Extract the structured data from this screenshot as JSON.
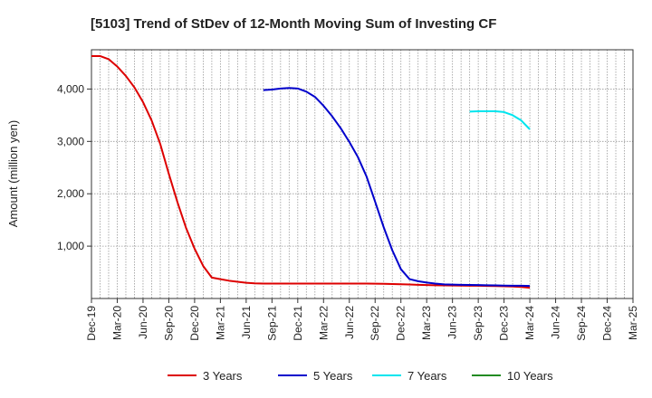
{
  "chart_data": {
    "type": "line",
    "title": "[5103]  Trend of StDev of 12-Month Moving Sum of Investing CF",
    "xlabel": "",
    "ylabel": "Amount (million yen)",
    "ylim": [
      0,
      4750
    ],
    "yticks": [
      1000,
      2000,
      3000,
      4000
    ],
    "ytick_labels": [
      "1,000",
      "2,000",
      "3,000",
      "4,000"
    ],
    "x_ticks": [
      "Dec-19",
      "Mar-20",
      "Jun-20",
      "Sep-20",
      "Dec-20",
      "Mar-21",
      "Jun-21",
      "Sep-21",
      "Dec-21",
      "Mar-22",
      "Jun-22",
      "Sep-22",
      "Dec-22",
      "Mar-23",
      "Jun-23",
      "Sep-23",
      "Dec-23",
      "Mar-24",
      "Jun-24",
      "Sep-24",
      "Dec-24",
      "Mar-25"
    ],
    "grid": true,
    "legend_position": "bottom",
    "series": [
      {
        "name": "3 Years",
        "color": "#dd0000",
        "x": [
          "2019-12",
          "2020-01",
          "2020-02",
          "2020-03",
          "2020-04",
          "2020-05",
          "2020-06",
          "2020-07",
          "2020-08",
          "2020-09",
          "2020-10",
          "2020-11",
          "2020-12",
          "2021-01",
          "2021-02",
          "2021-03",
          "2021-04",
          "2021-05",
          "2021-06",
          "2021-07",
          "2021-08",
          "2021-09",
          "2021-10",
          "2021-11",
          "2021-12",
          "2022-01",
          "2022-02",
          "2022-03",
          "2022-04",
          "2022-05",
          "2022-06",
          "2022-07",
          "2022-08",
          "2022-09",
          "2022-10",
          "2022-11",
          "2022-12",
          "2023-01",
          "2023-02",
          "2023-03",
          "2023-04",
          "2023-05",
          "2023-06",
          "2023-07",
          "2023-08",
          "2023-09",
          "2023-10",
          "2023-11",
          "2023-12",
          "2024-01",
          "2024-02",
          "2024-03"
        ],
        "values": [
          4630,
          4630,
          4570,
          4430,
          4250,
          4030,
          3750,
          3400,
          2950,
          2380,
          1840,
          1350,
          950,
          620,
          400,
          370,
          340,
          320,
          300,
          290,
          285,
          285,
          285,
          285,
          285,
          285,
          285,
          285,
          285,
          285,
          285,
          285,
          285,
          283,
          280,
          277,
          272,
          267,
          262,
          257,
          252,
          250,
          248,
          247,
          245,
          243,
          240,
          237,
          233,
          228,
          220,
          205
        ]
      },
      {
        "name": "5 Years",
        "color": "#0000cc",
        "x": [
          "2021-08",
          "2021-09",
          "2021-10",
          "2021-11",
          "2021-12",
          "2022-01",
          "2022-02",
          "2022-03",
          "2022-04",
          "2022-05",
          "2022-06",
          "2022-07",
          "2022-08",
          "2022-09",
          "2022-10",
          "2022-11",
          "2022-12",
          "2023-01",
          "2023-02",
          "2023-03",
          "2023-04",
          "2023-05",
          "2023-06",
          "2023-07",
          "2023-08",
          "2023-09",
          "2023-10",
          "2023-11",
          "2023-12",
          "2024-01",
          "2024-02",
          "2024-03"
        ],
        "values": [
          3980,
          3990,
          4010,
          4020,
          4010,
          3950,
          3850,
          3680,
          3480,
          3250,
          2990,
          2700,
          2330,
          1850,
          1360,
          920,
          560,
          370,
          330,
          305,
          285,
          270,
          265,
          262,
          259,
          256,
          253,
          250,
          247,
          245,
          243,
          240
        ]
      },
      {
        "name": "7 Years",
        "color": "#00e5ee",
        "x": [
          "2023-08",
          "2023-09",
          "2023-10",
          "2023-11",
          "2023-12",
          "2024-01",
          "2024-02",
          "2024-03"
        ],
        "values": [
          3570,
          3575,
          3575,
          3575,
          3560,
          3500,
          3400,
          3230
        ]
      },
      {
        "name": "10 Years",
        "color": "#228B22",
        "x": [],
        "values": []
      }
    ]
  }
}
